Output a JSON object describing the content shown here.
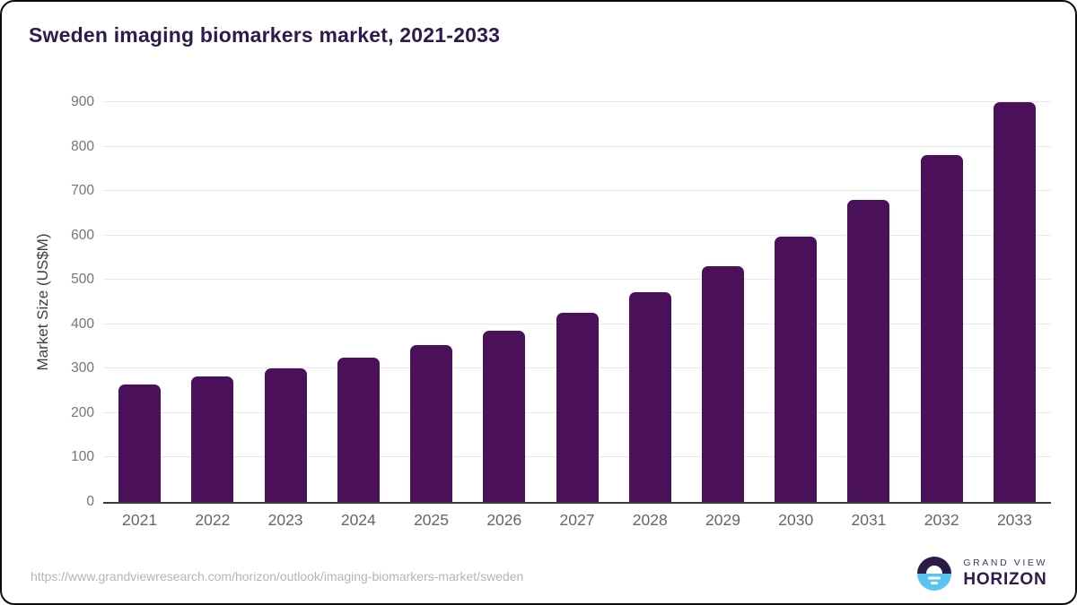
{
  "header": {
    "title": "Sweden imaging biomarkers market, 2021-2033"
  },
  "chart_data": {
    "type": "bar",
    "title": "Sweden imaging biomarkers market, 2021-2033",
    "categories": [
      "2021",
      "2022",
      "2023",
      "2024",
      "2025",
      "2026",
      "2027",
      "2028",
      "2029",
      "2030",
      "2031",
      "2032",
      "2033"
    ],
    "values": [
      264,
      282,
      300,
      325,
      353,
      385,
      426,
      472,
      530,
      598,
      680,
      781,
      900
    ],
    "xlabel": "",
    "ylabel": "Market Size (US$M)",
    "ylim": [
      0,
      900
    ],
    "ytick_step": 100,
    "grid": true,
    "legend": false,
    "bar_color": "#4a1059"
  },
  "footer": {
    "source_url": "https://www.grandviewresearch.com/horizon/outlook/imaging-biomarkers-market/sweden",
    "logo": {
      "line1": "GRAND VIEW",
      "line2": "HORIZON"
    }
  },
  "colors": {
    "title": "#2d1b4e",
    "bar": "#4a1059",
    "gridline": "#e8e8e8",
    "axis_line": "#3a3a3a",
    "y_tick_text": "#757575",
    "x_tick_text": "#666666",
    "y_label_text": "#3f3f3f",
    "url_text": "#b5b5b5",
    "logo_blue": "#59c4f0",
    "logo_dark": "#2e1a47"
  }
}
